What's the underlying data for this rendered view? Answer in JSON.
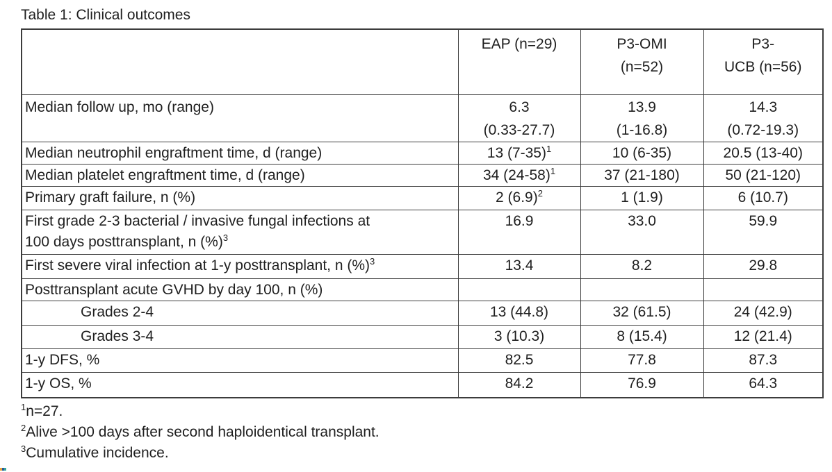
{
  "title": "Table 1: Clinical outcomes",
  "table": {
    "header": [
      {
        "l1": "",
        "l2": ""
      },
      {
        "l1": "EAP (n=29)",
        "l2": ""
      },
      {
        "l1": "P3-OMI",
        "l2": "(n=52)"
      },
      {
        "l1": "P3-",
        "l2": "UCB (n=56)"
      }
    ],
    "rows": [
      {
        "label": {
          "l1": "Median follow up, mo (range)"
        },
        "cells": [
          {
            "l1": "6.3",
            "l2": "(0.33-27.7)"
          },
          {
            "l1": "13.9",
            "l2": "(1-16.8)"
          },
          {
            "l1": "14.3",
            "l2": "(0.72-19.3)"
          }
        ]
      },
      {
        "label": {
          "l1": "Median neutrophil engraftment time, d (range)"
        },
        "cells": [
          {
            "l1": "13 (7-35)",
            "sup": "1"
          },
          {
            "l1": "10 (6-35)"
          },
          {
            "l1": "20.5 (13-40)"
          }
        ]
      },
      {
        "label": {
          "l1": "Median platelet engraftment time, d (range)"
        },
        "cells": [
          {
            "l1": "34 (24-58)",
            "sup": "1"
          },
          {
            "l1": "37 (21-180)"
          },
          {
            "l1": "50 (21-120)"
          }
        ]
      },
      {
        "label": {
          "l1": "Primary graft failure, n (%)"
        },
        "cells": [
          {
            "l1": "2 (6.9)",
            "sup": "2"
          },
          {
            "l1": "1 (1.9)"
          },
          {
            "l1": "6 (10.7)"
          }
        ]
      },
      {
        "label": {
          "l1": "First grade 2-3 bacterial / invasive fungal infections at",
          "l2": "100 days posttransplant, n (%)",
          "sup2": "3"
        },
        "cells": [
          {
            "l1": "16.9"
          },
          {
            "l1": "33.0"
          },
          {
            "l1": "59.9"
          }
        ]
      },
      {
        "label": {
          "l1": "First severe viral infection at 1-y posttransplant, n (%)",
          "sup1": "3"
        },
        "cells": [
          {
            "l1": "13.4"
          },
          {
            "l1": "8.2"
          },
          {
            "l1": "29.8"
          }
        ]
      },
      {
        "label": {
          "l1": "Posttransplant acute GVHD by day 100, n (%)"
        },
        "cells": [
          {
            "l1": ""
          },
          {
            "l1": ""
          },
          {
            "l1": ""
          }
        ]
      },
      {
        "label": {
          "l1": "Grades 2-4"
        },
        "cells": [
          {
            "l1": "13 (44.8)"
          },
          {
            "l1": "32 (61.5)"
          },
          {
            "l1": "24 (42.9)"
          }
        ]
      },
      {
        "label": {
          "l1": "Grades 3-4"
        },
        "cells": [
          {
            "l1": "3 (10.3)"
          },
          {
            "l1": "8 (15.4)"
          },
          {
            "l1": "12 (21.4)"
          }
        ]
      },
      {
        "label": {
          "l1": "1-y DFS, %"
        },
        "cells": [
          {
            "l1": "82.5"
          },
          {
            "l1": "77.8"
          },
          {
            "l1": "87.3"
          }
        ]
      },
      {
        "label": {
          "l1": "1-y OS, %"
        },
        "cells": [
          {
            "l1": "84.2"
          },
          {
            "l1": "76.9"
          },
          {
            "l1": "64.3"
          }
        ]
      }
    ]
  },
  "footnotes": [
    {
      "sup": "1",
      "text": "n=27."
    },
    {
      "sup": "2",
      "text": "Alive >100 days after second haploidentical transplant."
    },
    {
      "sup": "3",
      "text": "Cumulative incidence."
    }
  ],
  "colors": {
    "text": "#1f1f1f",
    "border": "#3c3c3c",
    "background": "#ffffff"
  },
  "artifact": {
    "colors": [
      "#e6a23c",
      "#2b579a",
      "#35a79c"
    ]
  }
}
